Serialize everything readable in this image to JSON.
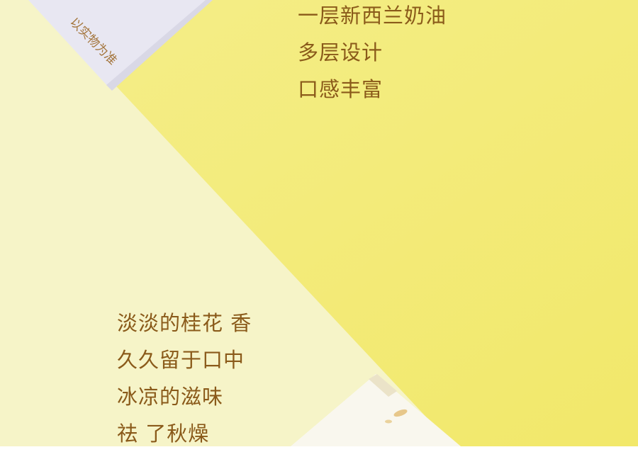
{
  "caption": "以实物为准",
  "top_lines": [
    "一层新西兰奶油",
    "多层设计",
    "口感丰富"
  ],
  "bottom_lines": [
    "淡淡的桂花 香",
    "久久留于口中",
    "冰凉的滋味",
    "祛 了秋燥"
  ],
  "colors": {
    "yellow": "#f3ec7c",
    "cream": "#f6f4c6",
    "card": "#e9e8f2",
    "text": "#8a5a1a"
  }
}
